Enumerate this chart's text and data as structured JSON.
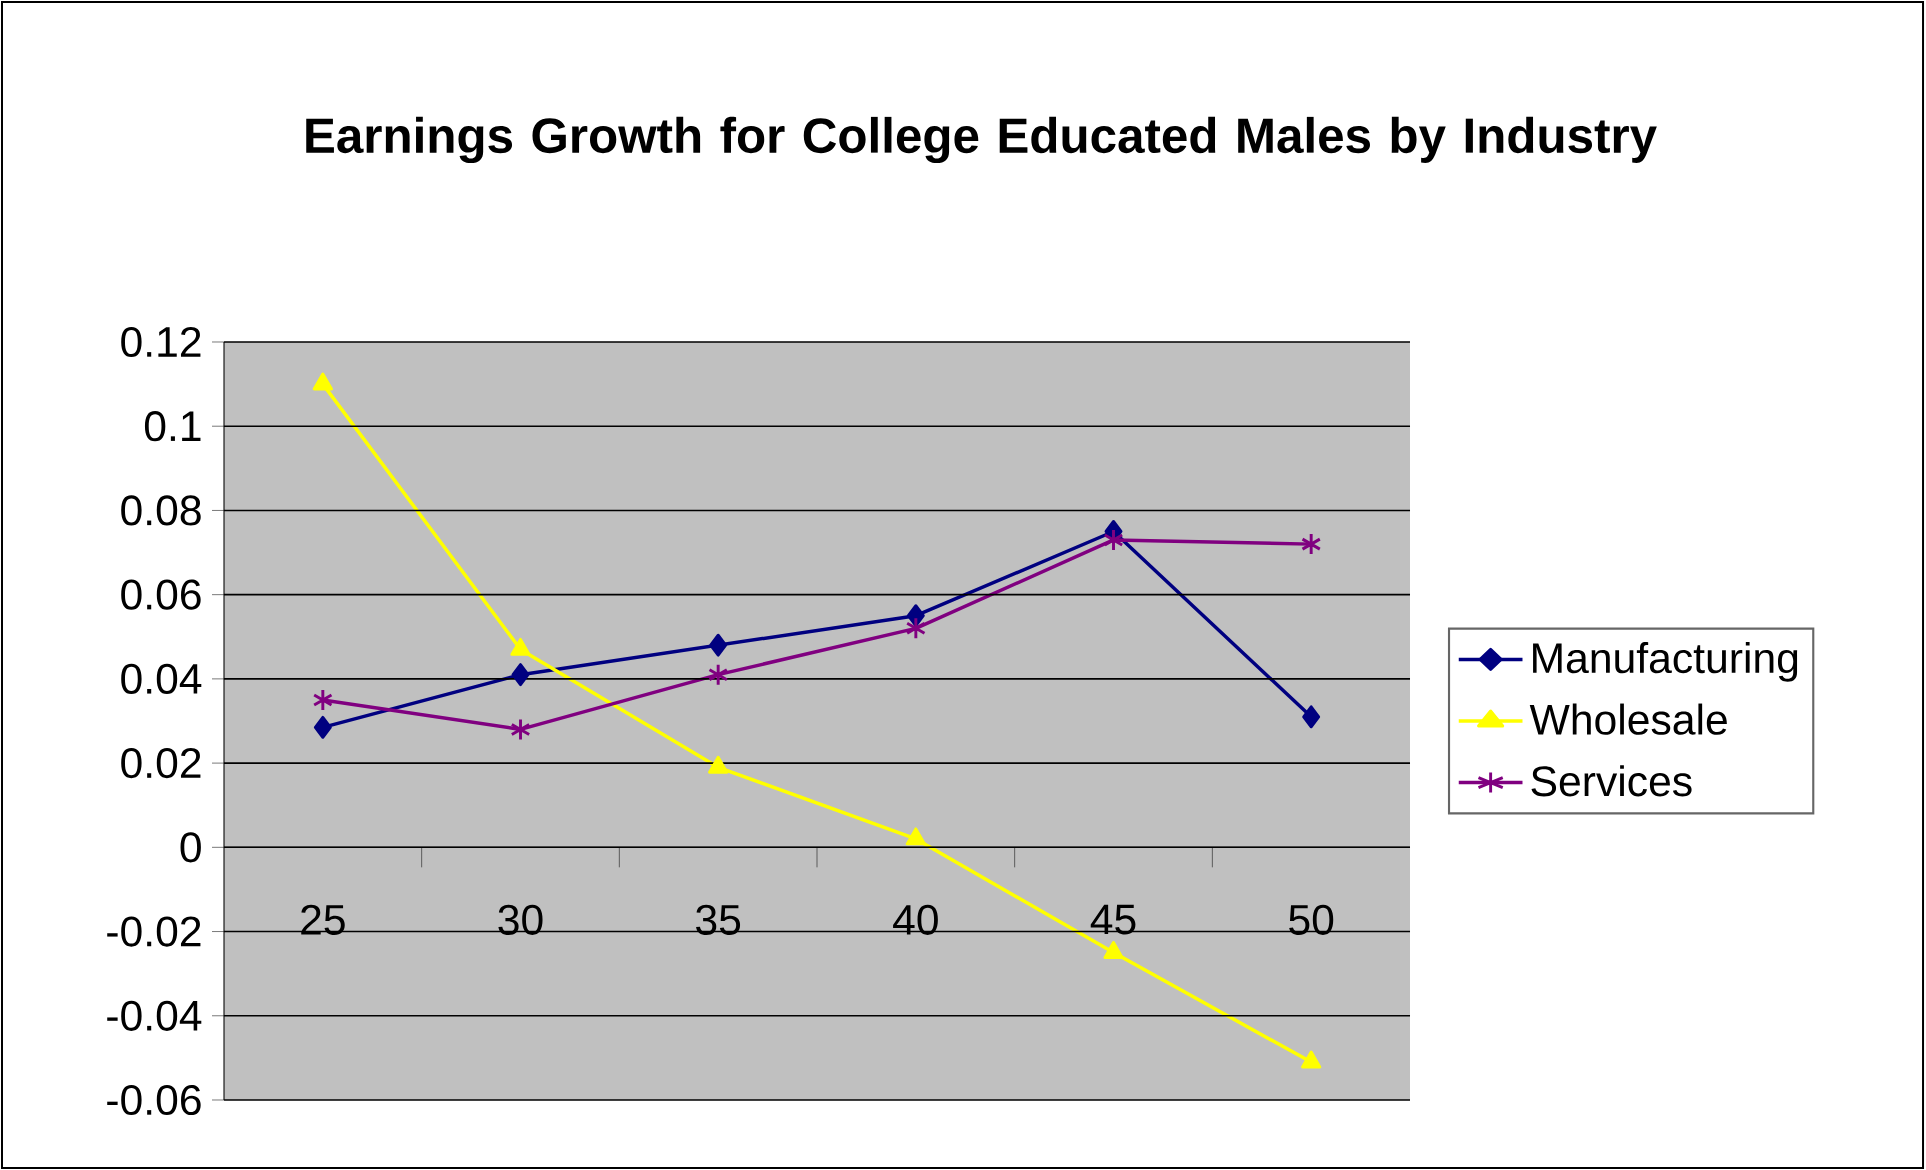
{
  "chart_data": {
    "type": "line",
    "title": "Earnings Growth for College Educated Males by Industry",
    "categories": [
      "25",
      "30",
      "35",
      "40",
      "45",
      "50"
    ],
    "series": [
      {
        "name": "Manufacturing",
        "color": "#000080",
        "marker": "diamond",
        "values": [
          0.0285,
          0.041,
          0.048,
          0.055,
          0.075,
          0.031
        ]
      },
      {
        "name": "Wholesale",
        "color": "#ffff00",
        "marker": "triangle",
        "values": [
          0.11,
          0.047,
          0.019,
          0.002,
          -0.025,
          -0.051
        ]
      },
      {
        "name": "Services",
        "color": "#800080",
        "marker": "cross",
        "values": [
          0.035,
          0.028,
          0.041,
          0.052,
          0.073,
          0.072
        ]
      }
    ],
    "ylim": [
      -0.06,
      0.12
    ],
    "yticks": [
      -0.06,
      -0.04,
      -0.02,
      0,
      0.02,
      0.04,
      0.06,
      0.08,
      0.1,
      0.12
    ],
    "grid": "y",
    "legend": "right",
    "line_style": "solid"
  }
}
